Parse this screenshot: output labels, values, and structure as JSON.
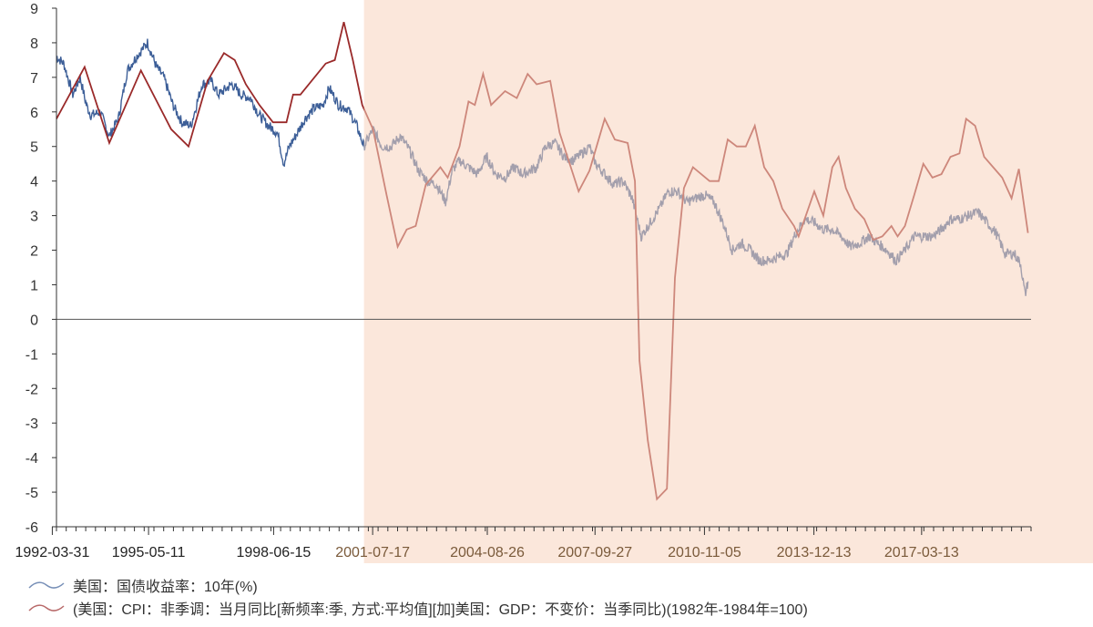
{
  "chart_data": {
    "type": "line",
    "title": "",
    "xlabel": "",
    "ylabel": "",
    "xlim": [
      1992.25,
      2020.3
    ],
    "ylim": [
      -6,
      9
    ],
    "yticks": [
      9,
      8,
      7,
      6,
      5,
      4,
      3,
      2,
      1,
      0,
      -1,
      -2,
      -3,
      -4,
      -5,
      -6
    ],
    "xtick_labels": [
      {
        "label": "1992-03-31",
        "year": 1992.13
      },
      {
        "label": "1995-05-11",
        "year": 1994.9
      },
      {
        "label": "1998-06-15",
        "year": 1998.5
      },
      {
        "label": "2001-07-17",
        "year": 2001.35
      },
      {
        "label": "2004-08-26",
        "year": 2004.65
      },
      {
        "label": "2007-09-27",
        "year": 2007.75
      },
      {
        "label": "2010-11-05",
        "year": 2010.9
      },
      {
        "label": "2013-12-13",
        "year": 2014.05
      },
      {
        "label": "2017-03-13",
        "year": 2017.15
      }
    ],
    "shaded_region": {
      "from_year": 2001.1,
      "color": "#f7d3bd"
    },
    "legend_position": "bottom-left",
    "series": [
      {
        "name": "美国：国债收益率：10年(%)",
        "color": "#3d5f98",
        "x": [
          1992.25,
          1992.46,
          1992.72,
          1992.93,
          1993.11,
          1993.24,
          1993.51,
          1993.77,
          1994.03,
          1994.29,
          1994.55,
          1994.87,
          1995.13,
          1995.34,
          1995.6,
          1995.86,
          1996.12,
          1996.44,
          1996.7,
          1996.91,
          1997.3,
          1997.56,
          1997.83,
          1998.09,
          1998.35,
          1998.61,
          1998.79,
          1998.95,
          1999.13,
          1999.4,
          1999.66,
          1999.92,
          2000.1,
          2000.37,
          2000.63,
          2000.89,
          2001.1,
          2001.36,
          2001.62,
          2001.88,
          2002.14,
          2002.41,
          2002.67,
          2002.93,
          2003.19,
          2003.45,
          2003.64,
          2003.85,
          2004.11,
          2004.37,
          2004.63,
          2004.89,
          2005.16,
          2005.42,
          2005.68,
          2006.07,
          2006.33,
          2006.6,
          2006.86,
          2007.12,
          2007.38,
          2007.59,
          2007.77,
          2008.03,
          2008.29,
          2008.56,
          2008.82,
          2009.08,
          2009.34,
          2009.6,
          2009.86,
          2010.12,
          2010.39,
          2010.65,
          2010.91,
          2011.17,
          2011.43,
          2011.7,
          2011.96,
          2012.22,
          2012.48,
          2012.75,
          2013.01,
          2013.27,
          2013.53,
          2013.79,
          2014.06,
          2014.32,
          2014.58,
          2014.84,
          2015.1,
          2015.37,
          2015.63,
          2015.89,
          2016.15,
          2016.41,
          2016.67,
          2016.94,
          2017.2,
          2017.46,
          2017.72,
          2017.98,
          2018.24,
          2018.51,
          2018.77,
          2019.03,
          2019.29,
          2019.55,
          2019.82,
          2020.0,
          2020.13,
          2020.21
        ],
        "values": [
          7.6,
          7.4,
          6.5,
          7.0,
          6.2,
          5.9,
          6.0,
          5.3,
          5.8,
          7.2,
          7.6,
          8.0,
          7.3,
          7.0,
          6.2,
          5.7,
          5.6,
          6.8,
          6.9,
          6.5,
          6.8,
          6.5,
          6.4,
          5.9,
          5.6,
          5.4,
          4.5,
          5.0,
          5.3,
          5.8,
          6.1,
          6.2,
          6.7,
          6.2,
          6.1,
          5.6,
          5.0,
          5.5,
          5.0,
          5.0,
          5.3,
          4.9,
          4.3,
          4.0,
          3.9,
          3.4,
          4.3,
          4.6,
          4.4,
          4.2,
          4.7,
          4.2,
          4.1,
          4.4,
          4.2,
          4.4,
          5.0,
          5.1,
          4.7,
          4.6,
          4.8,
          5.0,
          4.5,
          4.2,
          3.9,
          4.0,
          3.5,
          2.4,
          2.8,
          3.2,
          3.7,
          3.7,
          3.4,
          3.5,
          3.6,
          3.4,
          2.8,
          2.0,
          2.2,
          2.0,
          1.7,
          1.7,
          1.8,
          1.9,
          2.5,
          2.9,
          2.8,
          2.6,
          2.6,
          2.4,
          2.1,
          2.2,
          2.4,
          2.2,
          2.0,
          1.7,
          2.0,
          2.4,
          2.4,
          2.4,
          2.6,
          2.9,
          2.9,
          3.0,
          3.1,
          2.8,
          2.5,
          1.9,
          1.9,
          1.6,
          0.7,
          1.1
        ]
      },
      {
        "name": "(美国：CPI：非季调：当月同比[新频率:季, 方式:平均值][加]美国：GDP：不变价：当季同比)(1982年-1984年=100)",
        "color": "#9a2a2a",
        "x": [
          1992.25,
          1993.06,
          1993.77,
          1994.68,
          1995.55,
          1996.05,
          1996.6,
          1997.07,
          1997.38,
          1997.7,
          1998.09,
          1998.48,
          1998.87,
          1999.06,
          1999.27,
          2000.0,
          2000.26,
          2000.52,
          2000.78,
          2001.05,
          2001.36,
          2001.75,
          2002.07,
          2002.33,
          2002.59,
          2002.88,
          2003.3,
          2003.51,
          2003.85,
          2004.11,
          2004.29,
          2004.53,
          2004.76,
          2005.16,
          2005.5,
          2005.81,
          2006.07,
          2006.46,
          2006.73,
          2007.28,
          2007.59,
          2008.03,
          2008.32,
          2008.69,
          2008.9,
          2009.03,
          2009.27,
          2009.53,
          2009.82,
          2010.05,
          2010.31,
          2010.57,
          2011.05,
          2011.31,
          2011.57,
          2011.83,
          2012.09,
          2012.35,
          2012.62,
          2012.88,
          2013.14,
          2013.48,
          2013.61,
          2014.06,
          2014.32,
          2014.58,
          2014.76,
          2014.97,
          2015.23,
          2015.5,
          2015.76,
          2016.02,
          2016.28,
          2016.46,
          2016.67,
          2016.94,
          2017.2,
          2017.46,
          2017.72,
          2017.98,
          2018.24,
          2018.43,
          2018.69,
          2018.95,
          2019.21,
          2019.47,
          2019.74,
          2019.95,
          2020.21
        ],
        "values": [
          5.8,
          7.3,
          5.1,
          7.2,
          5.5,
          5.0,
          6.9,
          7.7,
          7.5,
          6.8,
          6.2,
          5.7,
          5.7,
          6.5,
          6.5,
          7.4,
          7.5,
          8.6,
          7.5,
          6.2,
          5.5,
          3.6,
          2.1,
          2.6,
          2.7,
          3.9,
          4.4,
          4.1,
          5.0,
          6.3,
          6.2,
          7.1,
          6.2,
          6.6,
          6.4,
          7.1,
          6.8,
          6.9,
          5.4,
          3.7,
          4.3,
          5.8,
          5.2,
          5.1,
          4.0,
          -1.2,
          -3.5,
          -5.2,
          -4.9,
          1.2,
          3.8,
          4.4,
          4.0,
          4.0,
          5.2,
          5.0,
          5.0,
          5.6,
          4.4,
          4.0,
          3.2,
          2.7,
          2.4,
          3.7,
          3.0,
          4.4,
          4.7,
          3.8,
          3.2,
          2.9,
          2.3,
          2.4,
          2.7,
          2.4,
          2.7,
          3.6,
          4.5,
          4.1,
          4.2,
          4.7,
          4.8,
          5.8,
          5.6,
          4.7,
          4.4,
          4.1,
          3.5,
          4.35,
          2.5
        ]
      }
    ]
  }
}
